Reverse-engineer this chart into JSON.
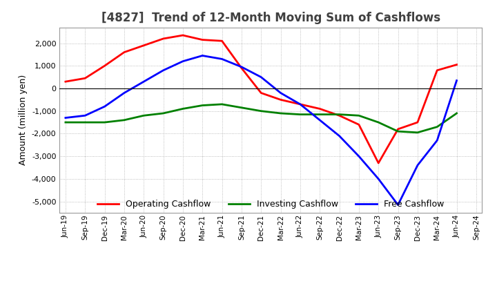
{
  "title": "[4827]  Trend of 12-Month Moving Sum of Cashflows",
  "ylabel": "Amount (million yen)",
  "ylim": [
    -5500,
    2700
  ],
  "yticks": [
    -5000,
    -4000,
    -3000,
    -2000,
    -1000,
    0,
    1000,
    2000
  ],
  "x_labels": [
    "Jun-19",
    "Sep-19",
    "Dec-19",
    "Mar-20",
    "Jun-20",
    "Sep-20",
    "Dec-20",
    "Mar-21",
    "Jun-21",
    "Sep-21",
    "Dec-21",
    "Mar-22",
    "Jun-22",
    "Sep-22",
    "Dec-22",
    "Mar-23",
    "Jun-23",
    "Sep-23",
    "Dec-23",
    "Mar-24",
    "Jun-24",
    "Sep-24"
  ],
  "operating_cashflow": [
    300,
    450,
    1000,
    1600,
    1900,
    2200,
    2350,
    2150,
    2100,
    900,
    -200,
    -500,
    -700,
    -900,
    -1200,
    -1600,
    -3300,
    -1800,
    -1500,
    800,
    1050,
    null
  ],
  "investing_cashflow": [
    -1500,
    -1500,
    -1500,
    -1400,
    -1200,
    -1100,
    -900,
    -750,
    -700,
    -850,
    -1000,
    -1100,
    -1150,
    -1150,
    -1150,
    -1200,
    -1500,
    -1900,
    -1950,
    -1700,
    -1100,
    null
  ],
  "free_cashflow": [
    -1300,
    -1200,
    -800,
    -200,
    300,
    800,
    1200,
    1450,
    1300,
    950,
    500,
    -200,
    -700,
    -1400,
    -2100,
    -3000,
    -4000,
    -5150,
    -3400,
    -2300,
    350,
    null
  ],
  "operating_color": "#ff0000",
  "investing_color": "#008000",
  "free_color": "#0000ff",
  "bg_color": "#ffffff",
  "grid_color": "#aaaaaa",
  "title_color": "#404040"
}
